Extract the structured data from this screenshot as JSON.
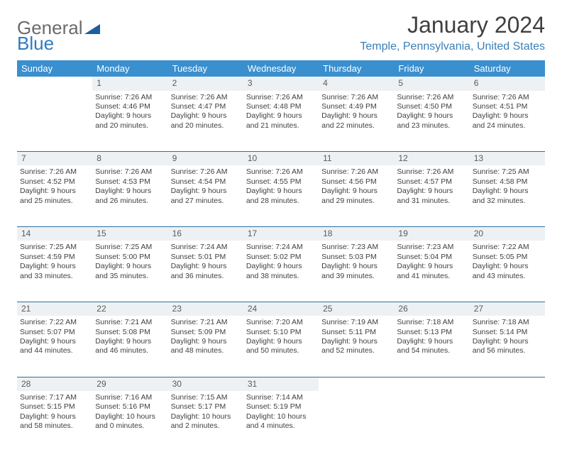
{
  "brand": {
    "part1": "General",
    "part2": "Blue"
  },
  "title": "January 2024",
  "location": "Temple, Pennsylvania, United States",
  "colors": {
    "header_bg": "#3a8fcf",
    "header_text": "#ffffff",
    "daynum_bg": "#eef1f3",
    "row_border": "#2f6fa0",
    "brand_grey": "#6b6b6b",
    "brand_blue": "#2f7bbf",
    "location_color": "#3a7fb8",
    "body_text": "#404040"
  },
  "weekdays": [
    "Sunday",
    "Monday",
    "Tuesday",
    "Wednesday",
    "Thursday",
    "Friday",
    "Saturday"
  ],
  "weeks": [
    {
      "nums": [
        "",
        "1",
        "2",
        "3",
        "4",
        "5",
        "6"
      ],
      "cells": [
        null,
        {
          "sunrise": "Sunrise: 7:26 AM",
          "sunset": "Sunset: 4:46 PM",
          "day1": "Daylight: 9 hours",
          "day2": "and 20 minutes."
        },
        {
          "sunrise": "Sunrise: 7:26 AM",
          "sunset": "Sunset: 4:47 PM",
          "day1": "Daylight: 9 hours",
          "day2": "and 20 minutes."
        },
        {
          "sunrise": "Sunrise: 7:26 AM",
          "sunset": "Sunset: 4:48 PM",
          "day1": "Daylight: 9 hours",
          "day2": "and 21 minutes."
        },
        {
          "sunrise": "Sunrise: 7:26 AM",
          "sunset": "Sunset: 4:49 PM",
          "day1": "Daylight: 9 hours",
          "day2": "and 22 minutes."
        },
        {
          "sunrise": "Sunrise: 7:26 AM",
          "sunset": "Sunset: 4:50 PM",
          "day1": "Daylight: 9 hours",
          "day2": "and 23 minutes."
        },
        {
          "sunrise": "Sunrise: 7:26 AM",
          "sunset": "Sunset: 4:51 PM",
          "day1": "Daylight: 9 hours",
          "day2": "and 24 minutes."
        }
      ]
    },
    {
      "nums": [
        "7",
        "8",
        "9",
        "10",
        "11",
        "12",
        "13"
      ],
      "cells": [
        {
          "sunrise": "Sunrise: 7:26 AM",
          "sunset": "Sunset: 4:52 PM",
          "day1": "Daylight: 9 hours",
          "day2": "and 25 minutes."
        },
        {
          "sunrise": "Sunrise: 7:26 AM",
          "sunset": "Sunset: 4:53 PM",
          "day1": "Daylight: 9 hours",
          "day2": "and 26 minutes."
        },
        {
          "sunrise": "Sunrise: 7:26 AM",
          "sunset": "Sunset: 4:54 PM",
          "day1": "Daylight: 9 hours",
          "day2": "and 27 minutes."
        },
        {
          "sunrise": "Sunrise: 7:26 AM",
          "sunset": "Sunset: 4:55 PM",
          "day1": "Daylight: 9 hours",
          "day2": "and 28 minutes."
        },
        {
          "sunrise": "Sunrise: 7:26 AM",
          "sunset": "Sunset: 4:56 PM",
          "day1": "Daylight: 9 hours",
          "day2": "and 29 minutes."
        },
        {
          "sunrise": "Sunrise: 7:26 AM",
          "sunset": "Sunset: 4:57 PM",
          "day1": "Daylight: 9 hours",
          "day2": "and 31 minutes."
        },
        {
          "sunrise": "Sunrise: 7:25 AM",
          "sunset": "Sunset: 4:58 PM",
          "day1": "Daylight: 9 hours",
          "day2": "and 32 minutes."
        }
      ]
    },
    {
      "nums": [
        "14",
        "15",
        "16",
        "17",
        "18",
        "19",
        "20"
      ],
      "cells": [
        {
          "sunrise": "Sunrise: 7:25 AM",
          "sunset": "Sunset: 4:59 PM",
          "day1": "Daylight: 9 hours",
          "day2": "and 33 minutes."
        },
        {
          "sunrise": "Sunrise: 7:25 AM",
          "sunset": "Sunset: 5:00 PM",
          "day1": "Daylight: 9 hours",
          "day2": "and 35 minutes."
        },
        {
          "sunrise": "Sunrise: 7:24 AM",
          "sunset": "Sunset: 5:01 PM",
          "day1": "Daylight: 9 hours",
          "day2": "and 36 minutes."
        },
        {
          "sunrise": "Sunrise: 7:24 AM",
          "sunset": "Sunset: 5:02 PM",
          "day1": "Daylight: 9 hours",
          "day2": "and 38 minutes."
        },
        {
          "sunrise": "Sunrise: 7:23 AM",
          "sunset": "Sunset: 5:03 PM",
          "day1": "Daylight: 9 hours",
          "day2": "and 39 minutes."
        },
        {
          "sunrise": "Sunrise: 7:23 AM",
          "sunset": "Sunset: 5:04 PM",
          "day1": "Daylight: 9 hours",
          "day2": "and 41 minutes."
        },
        {
          "sunrise": "Sunrise: 7:22 AM",
          "sunset": "Sunset: 5:05 PM",
          "day1": "Daylight: 9 hours",
          "day2": "and 43 minutes."
        }
      ]
    },
    {
      "nums": [
        "21",
        "22",
        "23",
        "24",
        "25",
        "26",
        "27"
      ],
      "cells": [
        {
          "sunrise": "Sunrise: 7:22 AM",
          "sunset": "Sunset: 5:07 PM",
          "day1": "Daylight: 9 hours",
          "day2": "and 44 minutes."
        },
        {
          "sunrise": "Sunrise: 7:21 AM",
          "sunset": "Sunset: 5:08 PM",
          "day1": "Daylight: 9 hours",
          "day2": "and 46 minutes."
        },
        {
          "sunrise": "Sunrise: 7:21 AM",
          "sunset": "Sunset: 5:09 PM",
          "day1": "Daylight: 9 hours",
          "day2": "and 48 minutes."
        },
        {
          "sunrise": "Sunrise: 7:20 AM",
          "sunset": "Sunset: 5:10 PM",
          "day1": "Daylight: 9 hours",
          "day2": "and 50 minutes."
        },
        {
          "sunrise": "Sunrise: 7:19 AM",
          "sunset": "Sunset: 5:11 PM",
          "day1": "Daylight: 9 hours",
          "day2": "and 52 minutes."
        },
        {
          "sunrise": "Sunrise: 7:18 AM",
          "sunset": "Sunset: 5:13 PM",
          "day1": "Daylight: 9 hours",
          "day2": "and 54 minutes."
        },
        {
          "sunrise": "Sunrise: 7:18 AM",
          "sunset": "Sunset: 5:14 PM",
          "day1": "Daylight: 9 hours",
          "day2": "and 56 minutes."
        }
      ]
    },
    {
      "nums": [
        "28",
        "29",
        "30",
        "31",
        "",
        "",
        ""
      ],
      "cells": [
        {
          "sunrise": "Sunrise: 7:17 AM",
          "sunset": "Sunset: 5:15 PM",
          "day1": "Daylight: 9 hours",
          "day2": "and 58 minutes."
        },
        {
          "sunrise": "Sunrise: 7:16 AM",
          "sunset": "Sunset: 5:16 PM",
          "day1": "Daylight: 10 hours",
          "day2": "and 0 minutes."
        },
        {
          "sunrise": "Sunrise: 7:15 AM",
          "sunset": "Sunset: 5:17 PM",
          "day1": "Daylight: 10 hours",
          "day2": "and 2 minutes."
        },
        {
          "sunrise": "Sunrise: 7:14 AM",
          "sunset": "Sunset: 5:19 PM",
          "day1": "Daylight: 10 hours",
          "day2": "and 4 minutes."
        },
        null,
        null,
        null
      ]
    }
  ]
}
